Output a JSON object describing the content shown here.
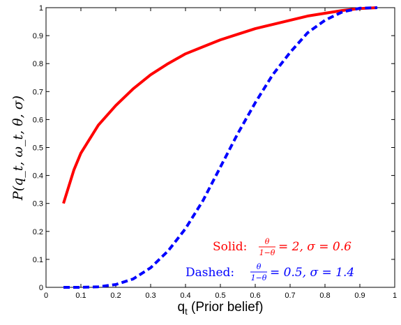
{
  "chart_data": {
    "type": "line",
    "xlabel": "q_t (Prior belief)",
    "xlabel_main": "q",
    "xlabel_sub": "t",
    "xlabel_rest": " (Prior belief)",
    "ylabel": "P(q_t, ω_t, θ, σ)",
    "xlim": [
      0,
      1
    ],
    "ylim": [
      0,
      1
    ],
    "x_ticks": [
      "0",
      "0.1",
      "0.2",
      "0.3",
      "0.4",
      "0.5",
      "0.6",
      "0.7",
      "0.8",
      "0.9",
      "1"
    ],
    "y_ticks": [
      "0",
      "0.1",
      "0.2",
      "0.3",
      "0.4",
      "0.5",
      "0.6",
      "0.7",
      "0.8",
      "0.9",
      "1"
    ],
    "grid": false,
    "series": [
      {
        "style": "solid",
        "color": "#ff0000",
        "x": [
          0.05,
          0.08,
          0.1,
          0.15,
          0.2,
          0.25,
          0.3,
          0.35,
          0.4,
          0.45,
          0.5,
          0.55,
          0.6,
          0.65,
          0.7,
          0.75,
          0.8,
          0.85,
          0.9,
          0.95
        ],
        "y": [
          0.3,
          0.42,
          0.48,
          0.58,
          0.65,
          0.71,
          0.76,
          0.8,
          0.835,
          0.86,
          0.885,
          0.905,
          0.925,
          0.94,
          0.955,
          0.97,
          0.98,
          0.99,
          0.997,
          1.0
        ]
      },
      {
        "style": "dashed",
        "color": "#0000ff",
        "x": [
          0.05,
          0.1,
          0.15,
          0.2,
          0.25,
          0.3,
          0.35,
          0.4,
          0.45,
          0.5,
          0.55,
          0.6,
          0.65,
          0.7,
          0.75,
          0.8,
          0.85,
          0.9,
          0.95
        ],
        "y": [
          0.0,
          0.0,
          0.002,
          0.01,
          0.03,
          0.07,
          0.13,
          0.21,
          0.31,
          0.43,
          0.55,
          0.66,
          0.76,
          0.84,
          0.91,
          0.955,
          0.985,
          0.998,
          1.0
        ]
      }
    ],
    "annotations": {
      "solid": {
        "prefix": "Solid:",
        "eq_rhs": "= 2, σ = 0.6",
        "color": "#ff0000"
      },
      "dashed": {
        "prefix": "Dashed:",
        "eq_rhs": "= 0.5, σ = 1.4",
        "color": "#0000ff"
      },
      "fraction_num": "θ",
      "fraction_den": "1−θ"
    }
  }
}
